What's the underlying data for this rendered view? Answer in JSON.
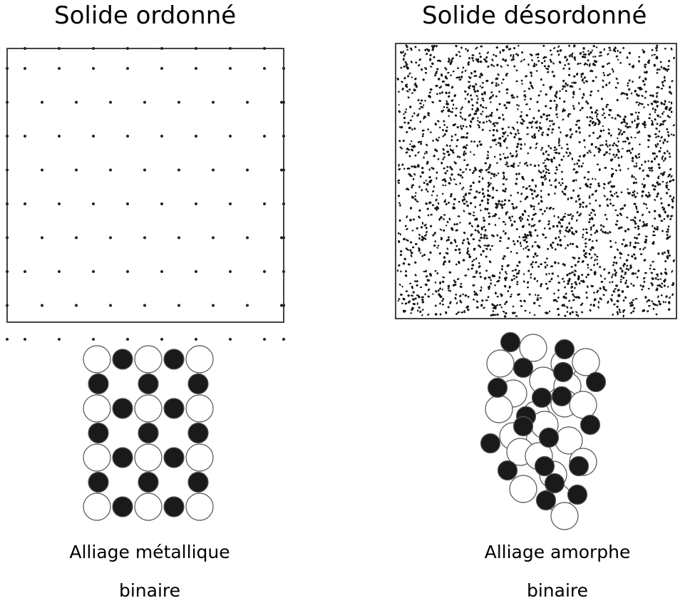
{
  "left": {
    "title": "Solide ordonné",
    "caption_line1": "Alliage métallique",
    "caption_line2": "binaire"
  },
  "right": {
    "title": "Solide désordonné",
    "caption_line1": "Alliage amorphe",
    "caption_line2": "binaire"
  },
  "colors": {
    "atom_dark": "#1a1a1a",
    "atom_light": "#ffffff",
    "stroke": "#555555"
  }
}
